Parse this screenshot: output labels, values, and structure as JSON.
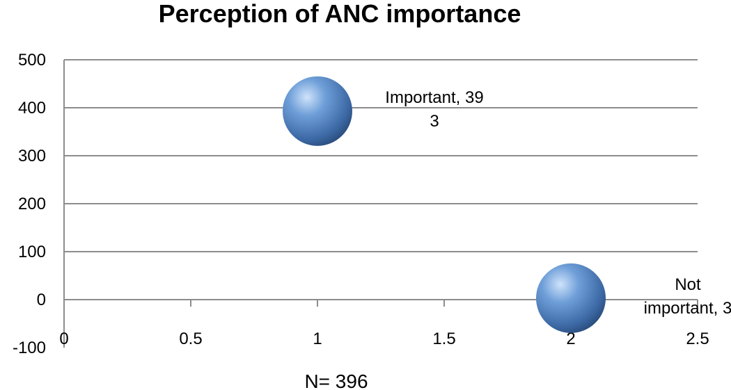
{
  "chart_data": {
    "type": "scatter",
    "title": "Perception of ANC importance",
    "xlabel": "",
    "ylabel": "",
    "xlim": [
      0,
      2.5
    ],
    "ylim": [
      -100,
      500
    ],
    "x_ticks": [
      0,
      0.5,
      1,
      1.5,
      2,
      2.5
    ],
    "y_ticks": [
      -100,
      0,
      100,
      200,
      300,
      400,
      500
    ],
    "grid": true,
    "marker_style": "bubble",
    "marker_color": "#4f81bd",
    "points": [
      {
        "x": 1,
        "y": 393,
        "label_lines": [
          "Important, 39",
          "3"
        ]
      },
      {
        "x": 2,
        "y": 3,
        "label_lines": [
          "Not",
          "important, 3"
        ]
      }
    ],
    "footnote": "N= 396"
  }
}
